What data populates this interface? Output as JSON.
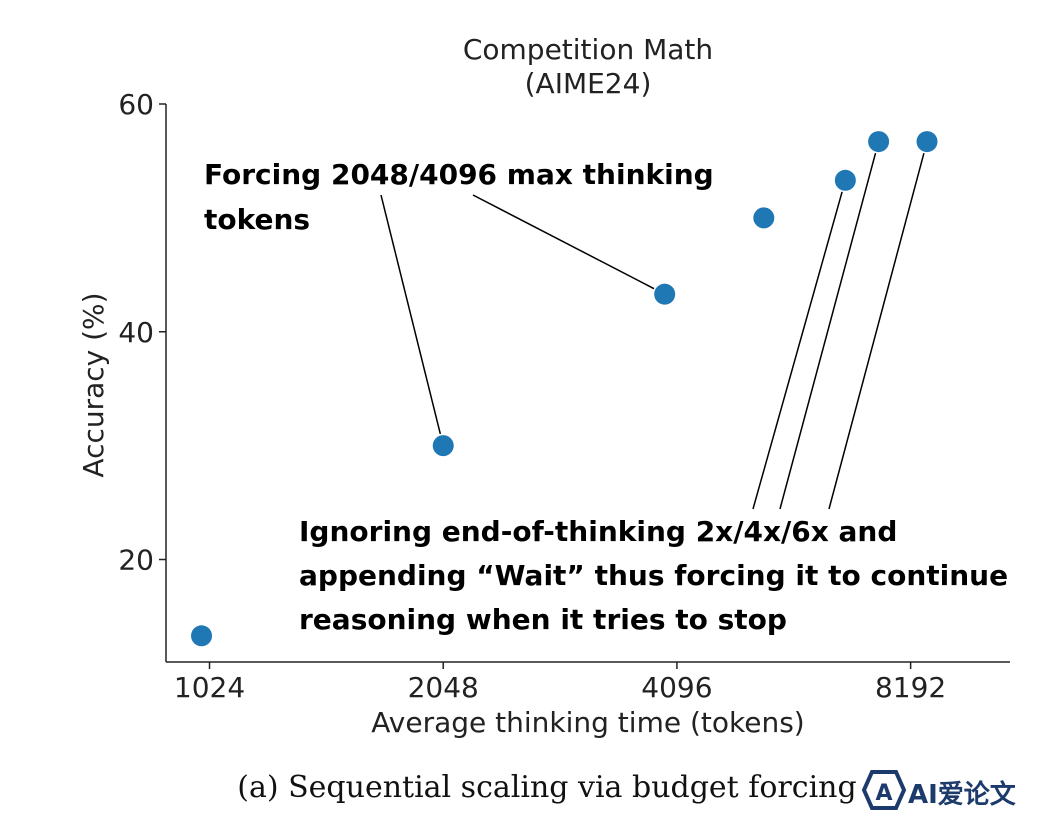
{
  "chart_data": {
    "type": "scatter",
    "title": [
      "Competition Math",
      "(AIME24)"
    ],
    "xlabel": "Average thinking time (tokens)",
    "ylabel": "Accuracy (%)",
    "xscale": "log2",
    "xlim": [
      900,
      11000
    ],
    "ylim": [
      11,
      60
    ],
    "xticks": [
      1024,
      2048,
      4096,
      8192
    ],
    "xtick_labels": [
      "1024",
      "2048",
      "4096",
      "8192"
    ],
    "yticks": [
      20,
      40,
      60
    ],
    "ytick_labels": [
      "20",
      "40",
      "60"
    ],
    "grid": false,
    "point_color": "#1f77b4",
    "points": [
      {
        "x": 1000,
        "y": 13.3
      },
      {
        "x": 2048,
        "y": 30.0
      },
      {
        "x": 3950,
        "y": 43.3
      },
      {
        "x": 5300,
        "y": 50.0
      },
      {
        "x": 6750,
        "y": 53.3
      },
      {
        "x": 7450,
        "y": 56.7
      },
      {
        "x": 8600,
        "y": 56.7
      }
    ],
    "annotations": [
      {
        "lines": [
          "Forcing 2048/4096 max thinking",
          "tokens"
        ],
        "points": [
          1,
          2
        ]
      },
      {
        "lines": [
          "Ignoring end-of-thinking 2x/4x/6x and",
          "appending “Wait” thus forcing it to continue",
          "reasoning when it tries to stop"
        ],
        "points": [
          4,
          5,
          6
        ]
      }
    ]
  },
  "caption": "(a)  Sequential scaling via budget forcing",
  "watermark": "AI爱论文"
}
